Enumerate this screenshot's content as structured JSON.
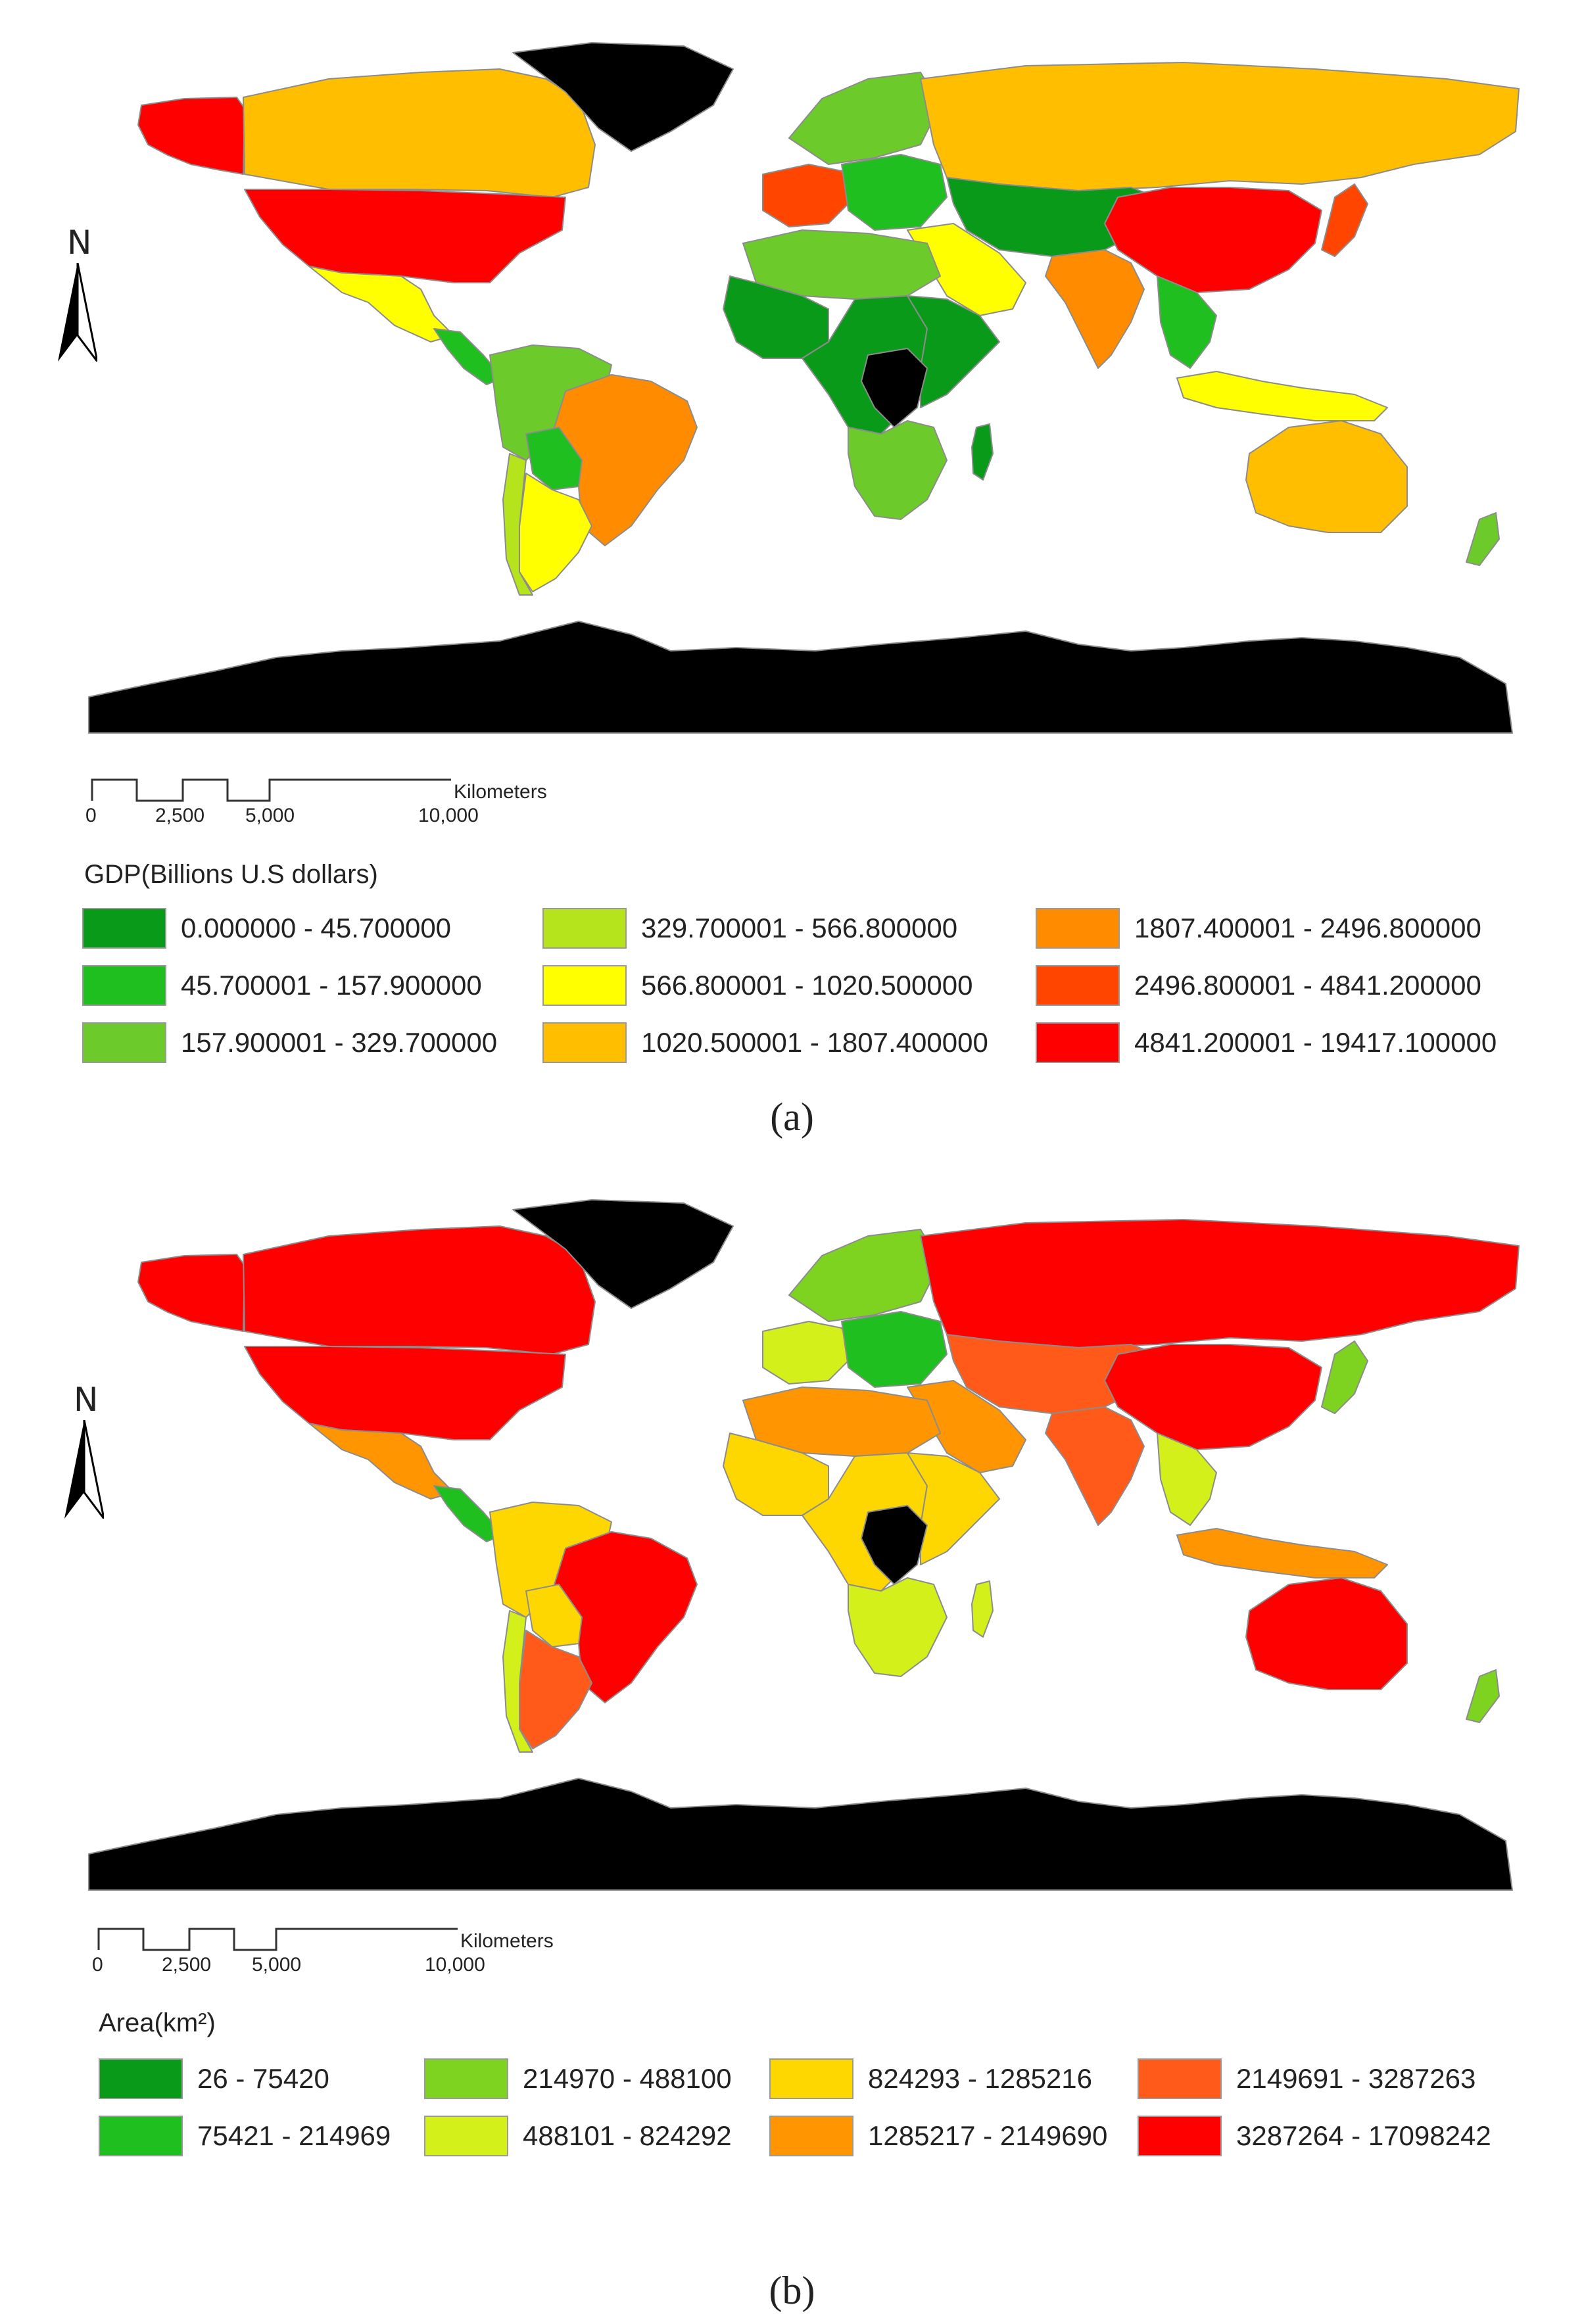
{
  "panels": [
    {
      "id": "a",
      "panel_label": "(a)",
      "north_label": "N",
      "scalebar": {
        "ticks": [
          "0",
          "2,500",
          "5,000",
          "10,000"
        ],
        "unit": "Kilometers"
      },
      "legend": {
        "title": "GDP(Billions U.S dollars)",
        "classes": [
          {
            "label": "0.000000 - 45.700000",
            "color": "#0a9a1a"
          },
          {
            "label": "45.700001 - 157.900000",
            "color": "#1fbf1f"
          },
          {
            "label": "157.900001 - 329.700000",
            "color": "#6ccb2a"
          },
          {
            "label": "329.700001 - 566.800000",
            "color": "#b6e41c"
          },
          {
            "label": "566.800001 - 1020.500000",
            "color": "#ffff00"
          },
          {
            "label": "1020.500001 - 1807.400000",
            "color": "#ffbf00"
          },
          {
            "label": "1807.400001 - 2496.800000",
            "color": "#ff8c00"
          },
          {
            "label": "2496.800001 - 4841.200000",
            "color": "#ff4500"
          },
          {
            "label": "4841.200001 - 19417.100000",
            "color": "#ff0000"
          }
        ]
      },
      "regions": {
        "canada": "#ffbf00",
        "alaska": "#ff0000",
        "usa": "#ff0000",
        "mexico": "#ffff00",
        "central_america": "#1fbf1f",
        "north_south_america": "#6ccb2a",
        "brazil": "#ff8c00",
        "bolivia": "#1fbf1f",
        "argentina": "#ffff00",
        "chile": "#b6e41c",
        "russia": "#ffbf00",
        "europe_west": "#ff4500",
        "europe_north": "#6ccb2a",
        "europe_east": "#1fbf1f",
        "north_africa": "#6ccb2a",
        "west_africa": "#0a9a1a",
        "central_africa": "#0a9a1a",
        "east_africa": "#0a9a1a",
        "south_africa": "#6ccb2a",
        "madagascar": "#0a9a1a",
        "middle_east": "#ffff00",
        "central_asia": "#0a9a1a",
        "india": "#ff8c00",
        "china": "#ff0000",
        "japan": "#ff4500",
        "se_asia": "#1fbf1f",
        "indonesia": "#ffff00",
        "australia": "#ffbf00",
        "new_zealand": "#6ccb2a",
        "greenland": "#000000",
        "antarctica": "#000000",
        "drc": "#000000"
      }
    },
    {
      "id": "b",
      "panel_label": "(b)",
      "north_label": "N",
      "scalebar": {
        "ticks": [
          "0",
          "2,500",
          "5,000",
          "10,000"
        ],
        "unit": "Kilometers"
      },
      "legend": {
        "title": "Area(km²)",
        "classes": [
          {
            "label": "26 - 75420",
            "color": "#0a9a1a"
          },
          {
            "label": "75421 - 214969",
            "color": "#1fbf1f"
          },
          {
            "label": "214970 - 488100",
            "color": "#7ed321"
          },
          {
            "label": "488101 - 824292",
            "color": "#d4f01a"
          },
          {
            "label": "824293 - 1285216",
            "color": "#ffd700"
          },
          {
            "label": "1285217 - 2149690",
            "color": "#ff9500"
          },
          {
            "label": "2149691 - 3287263",
            "color": "#ff5a1a"
          },
          {
            "label": "3287264 - 17098242",
            "color": "#ff0000"
          }
        ]
      },
      "regions": {
        "canada": "#ff0000",
        "alaska": "#ff0000",
        "usa": "#ff0000",
        "mexico": "#ff9500",
        "central_america": "#1fbf1f",
        "north_south_america": "#ffd700",
        "brazil": "#ff0000",
        "bolivia": "#ffd700",
        "argentina": "#ff5a1a",
        "chile": "#d4f01a",
        "russia": "#ff0000",
        "europe_west": "#d4f01a",
        "europe_north": "#7ed321",
        "europe_east": "#1fbf1f",
        "north_africa": "#ff9500",
        "west_africa": "#ffd700",
        "central_africa": "#ffd700",
        "east_africa": "#ffd700",
        "south_africa": "#d4f01a",
        "madagascar": "#d4f01a",
        "middle_east": "#ff9500",
        "central_asia": "#ff5a1a",
        "india": "#ff5a1a",
        "china": "#ff0000",
        "japan": "#7ed321",
        "se_asia": "#d4f01a",
        "indonesia": "#ff9500",
        "australia": "#ff0000",
        "new_zealand": "#7ed321",
        "greenland": "#000000",
        "antarctica": "#000000",
        "drc": "#000000"
      }
    }
  ]
}
